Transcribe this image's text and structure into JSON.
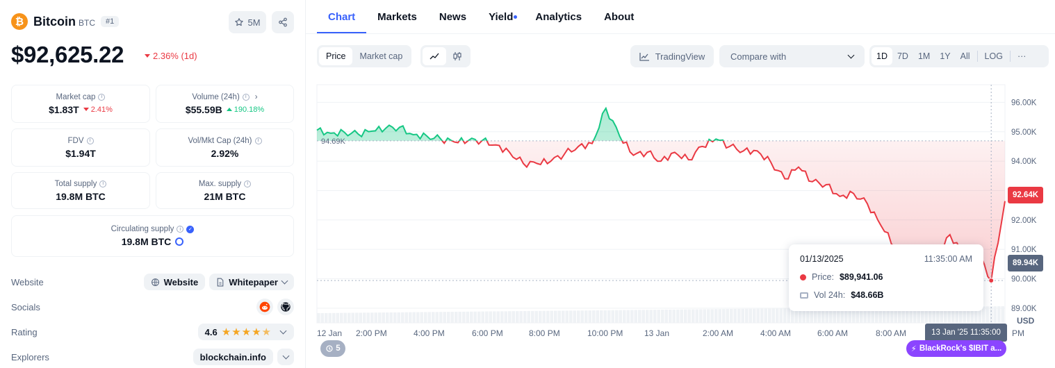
{
  "coin": {
    "name": "Bitcoin",
    "symbol": "BTC",
    "rank": "#1",
    "logo_glyph": "₿",
    "watchlist_count": "5M",
    "price": "$92,625.22",
    "price_change": "2.36% (1d)"
  },
  "stats": {
    "market_cap": {
      "label": "Market cap",
      "value": "$1.83T",
      "change": "2.41%"
    },
    "volume": {
      "label": "Volume (24h)",
      "value": "$55.59B",
      "change": "190.18%"
    },
    "fdv": {
      "label": "FDV",
      "value": "$1.94T"
    },
    "vol_mkt_cap": {
      "label": "Vol/Mkt Cap (24h)",
      "value": "2.92%"
    },
    "total_supply": {
      "label": "Total supply",
      "value": "19.8M BTC"
    },
    "max_supply": {
      "label": "Max. supply",
      "value": "21M BTC"
    },
    "circulating_supply": {
      "label": "Circulating supply",
      "value": "19.8M BTC"
    }
  },
  "links": {
    "website": {
      "label": "Website",
      "button": "Website",
      "whitepaper": "Whitepaper"
    },
    "socials": {
      "label": "Socials",
      "icons": [
        "reddit-icon",
        "github-icon"
      ]
    },
    "rating": {
      "label": "Rating",
      "value": "4.6",
      "stars": 4.6
    },
    "explorers": {
      "label": "Explorers",
      "value": "blockchain.info"
    }
  },
  "tabs": [
    "Chart",
    "Markets",
    "News",
    "Yield",
    "Analytics",
    "About"
  ],
  "toolbar": {
    "price": "Price",
    "market_cap": "Market cap",
    "tradingview": "TradingView",
    "compare": "Compare with",
    "ranges": [
      "1D",
      "7D",
      "1M",
      "1Y",
      "All"
    ],
    "log": "LOG",
    "more": "···"
  },
  "chart": {
    "currency": "USD",
    "y_ticks": [
      "96.00K",
      "95.00K",
      "94.00K",
      "93.00K",
      "92.00K",
      "91.00K",
      "90.00K",
      "89.00K"
    ],
    "x_ticks": [
      "12 Jan",
      "2:00 PM",
      "4:00 PM",
      "6:00 PM",
      "8:00 PM",
      "10:00 PM",
      "13 Jan",
      "2:00 AM",
      "4:00 AM",
      "6:00 AM",
      "8:00 AM",
      "PM"
    ],
    "baseline_label": "94.69K",
    "current_badge": "92.64K",
    "crosshair_badge": "89.94K",
    "crosshair_time": "13 Jan '25 11:35:00",
    "events_count": "5",
    "event_label": "BlackRock's $IBIT a...",
    "colors": {
      "up": "#16c784",
      "down": "#ea3943",
      "accent": "#3861fb"
    }
  },
  "tooltip": {
    "date": "01/13/2025",
    "time": "11:35:00 AM",
    "price_label": "Price:",
    "price_value": "$89,941.06",
    "vol_label": "Vol 24h:",
    "vol_value": "$48.66B"
  },
  "chart_data": {
    "type": "line",
    "title": "",
    "xlabel": "",
    "ylabel": "",
    "baseline": 94.69,
    "ylim": [
      88.5,
      96.6
    ],
    "x": [
      "12 Jan 12:00",
      "12:30",
      "1:00 PM",
      "1:30",
      "2:00 PM",
      "2:30",
      "3:00",
      "3:30",
      "4:00 PM",
      "4:30",
      "5:00",
      "5:30",
      "6:00 PM",
      "6:30",
      "7:00",
      "7:30",
      "8:00 PM",
      "8:30",
      "9:00",
      "9:30",
      "9:45",
      "10:00 PM",
      "10:30",
      "11:00",
      "11:30",
      "13 Jan",
      "0:30",
      "1:00",
      "1:30",
      "2:00 AM",
      "2:30",
      "3:00",
      "3:30",
      "4:00 AM",
      "4:30",
      "5:00",
      "5:30",
      "6:00 AM",
      "6:30",
      "7:00",
      "7:30",
      "8:00 AM",
      "8:30",
      "9:00",
      "9:30",
      "10:00",
      "10:30",
      "11:00",
      "11:20",
      "11:35",
      "11:50"
    ],
    "series": [
      {
        "values": [
          95.05,
          94.95,
          94.98,
          94.92,
          95.02,
          95.12,
          95.15,
          94.9,
          94.85,
          94.75,
          94.65,
          94.7,
          94.7,
          94.55,
          94.3,
          93.92,
          93.92,
          94.0,
          94.25,
          94.5,
          94.6,
          95.8,
          94.85,
          94.2,
          94.3,
          94.0,
          94.3,
          94.05,
          94.5,
          94.75,
          94.5,
          94.35,
          94.35,
          93.95,
          93.4,
          93.8,
          93.3,
          93.2,
          92.8,
          92.9,
          92.55,
          91.8,
          91.1,
          90.8,
          90.9,
          90.6,
          91.5,
          90.8,
          90.95,
          89.94,
          92.64
        ]
      }
    ]
  }
}
